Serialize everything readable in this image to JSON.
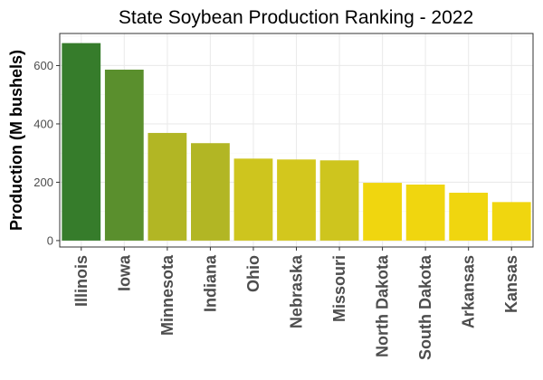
{
  "chart_data": {
    "type": "bar",
    "title": "State Soybean Production Ranking - 2022",
    "xlabel": "",
    "ylabel": "Production (M bushels)",
    "ylim": [
      0,
      700
    ],
    "yticks": [
      0,
      200,
      400,
      600
    ],
    "grid": true,
    "legend": "none",
    "categories": [
      "Illinois",
      "Iowa",
      "Minnesota",
      "Indiana",
      "Ohio",
      "Nebraska",
      "Missouri",
      "North Dakota",
      "South Dakota",
      "Arkansas",
      "Kansas"
    ],
    "values": [
      677,
      586,
      369,
      334,
      281,
      278,
      275,
      198,
      192,
      164,
      132
    ],
    "colors": [
      "#367c2b",
      "#5a8f2d",
      "#b2b624",
      "#b2b624",
      "#cec51e",
      "#d3c71d",
      "#cec51e",
      "#f0d60f",
      "#f0d60f",
      "#f0d60f",
      "#f0d60f"
    ]
  }
}
